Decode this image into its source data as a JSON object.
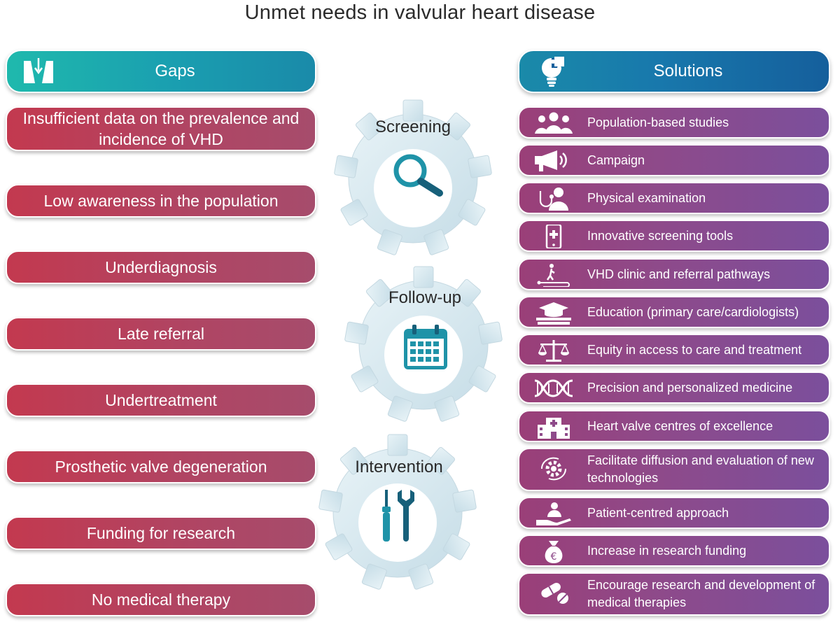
{
  "title": "Unmet needs in valvular heart disease",
  "gaps": {
    "header": "Gaps",
    "header_icon": "valve-arrow-icon",
    "items": [
      "Insufficient data on the prevalence and incidence of VHD",
      "Low awareness in the population",
      "Underdiagnosis",
      "Late referral",
      "Undertreatment",
      "Prosthetic valve degeneration",
      "Funding for research",
      "No medical therapy"
    ]
  },
  "solutions": {
    "header": "Solutions",
    "header_icon": "lightbulb-puzzle-icon",
    "items": [
      {
        "label": "Population-based studies",
        "icon": "people-group-icon"
      },
      {
        "label": "Campaign",
        "icon": "megaphone-icon"
      },
      {
        "label": "Physical examination",
        "icon": "doctor-stethoscope-icon"
      },
      {
        "label": "Innovative screening tools",
        "icon": "smartphone-medical-icon"
      },
      {
        "label": "VHD clinic and referral pathways",
        "icon": "pathway-walker-icon"
      },
      {
        "label": "Education (primary care/cardiologists)",
        "icon": "graduation-books-icon"
      },
      {
        "label": "Equity in access to care and treatment",
        "icon": "balance-scale-icon"
      },
      {
        "label": "Precision and personalized medicine",
        "icon": "dna-icon"
      },
      {
        "label": "Heart valve centres of excellence",
        "icon": "hospital-icon"
      },
      {
        "label": "Facilitate diffusion and evaluation of new technologies",
        "icon": "gear-cycle-icon"
      },
      {
        "label": "Patient-centred approach",
        "icon": "patient-hand-icon"
      },
      {
        "label": "Increase in research funding",
        "icon": "euro-money-bag-icon"
      },
      {
        "label": "Encourage research and development of medical therapies",
        "icon": "pills-icon"
      }
    ]
  },
  "stages": [
    {
      "label": "Screening",
      "icon": "magnifier-icon"
    },
    {
      "label": "Follow-up",
      "icon": "calendar-icon"
    },
    {
      "label": "Intervention",
      "icon": "screwdriver-wrench-icon"
    }
  ],
  "colors": {
    "gap_pill": "#b4415e",
    "solution_pill": "#8a4a8c",
    "teal_header": "#1fb9ad",
    "blue_header": "#155f9c",
    "gear": "#d3e6ee",
    "icon_teal": "#1f93a8"
  }
}
